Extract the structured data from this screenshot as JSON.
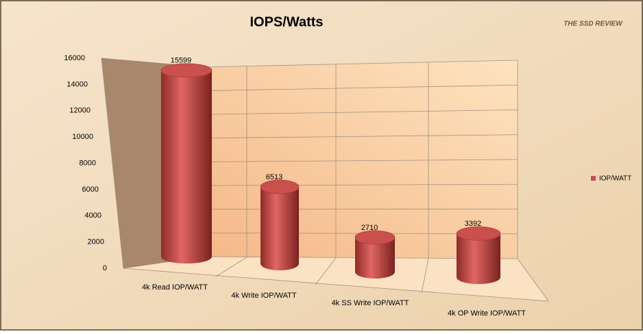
{
  "chart_data": {
    "type": "bar3d",
    "title": "IOPS/Watts",
    "logo": "THE SSD REVIEW",
    "categories": [
      "4k Read IOP/WATT",
      "4k Write IOP/WATT",
      "4k SS Write IOP/WATT",
      "4k OP Write IOP/WATT"
    ],
    "series": [
      {
        "name": "IOP/WATT",
        "color": "#c0504d",
        "values": [
          15599,
          6513,
          2710,
          3392
        ]
      }
    ],
    "ylim": [
      0,
      16000
    ],
    "yticks": [
      0,
      2000,
      4000,
      6000,
      8000,
      10000,
      12000,
      14000,
      16000
    ],
    "grid": true,
    "legend": "right"
  }
}
